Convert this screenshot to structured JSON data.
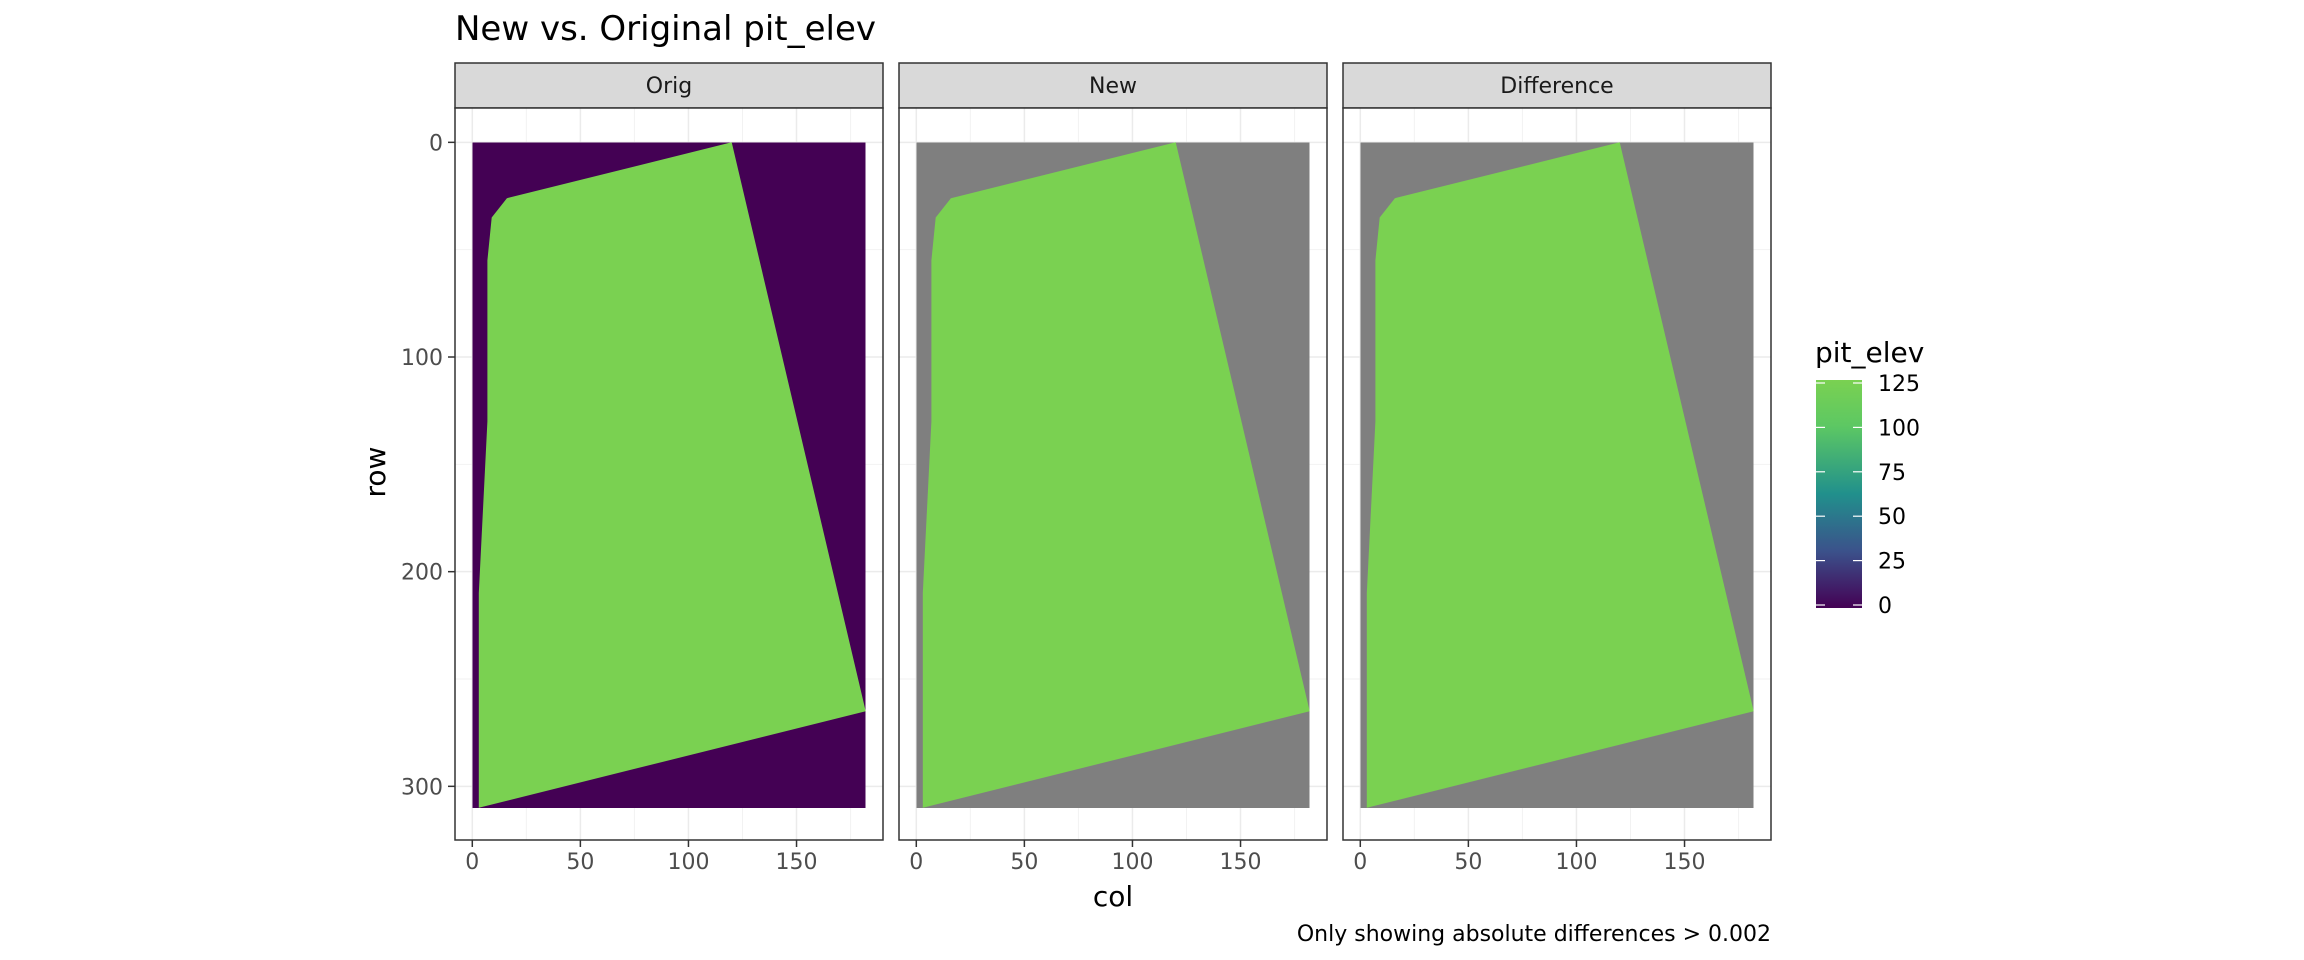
{
  "chart_data": {
    "type": "heatmap",
    "title": "New vs. Original pit_elev",
    "caption": "Only showing absolute differences > 0.002",
    "xlabel": "col",
    "ylabel": "row",
    "xlim": [
      -8,
      190
    ],
    "ylim": [
      325,
      -16
    ],
    "x_ticks": [
      0,
      50,
      100,
      150
    ],
    "x_tick_labels": [
      "0",
      "50",
      "100",
      "150"
    ],
    "y_ticks": [
      0,
      100,
      200,
      300
    ],
    "y_tick_labels": [
      "0",
      "100",
      "200",
      "300"
    ],
    "grid": true,
    "panels": [
      {
        "label": "Orig",
        "fill_value": 0
      },
      {
        "label": "New",
        "fill_value": null
      },
      {
        "label": "Difference",
        "fill_value": null
      }
    ],
    "raster_extent": {
      "col": [
        0,
        182
      ],
      "row": [
        0,
        310
      ]
    },
    "region_value": 125,
    "region_outline": [
      [
        120,
        0
      ],
      [
        182,
        265
      ],
      [
        3,
        310
      ],
      [
        3,
        210
      ],
      [
        7,
        130
      ],
      [
        7,
        55
      ],
      [
        9,
        35
      ],
      [
        16,
        26
      ]
    ],
    "na_color": "#7f7f7f",
    "region_color": "#7ad151",
    "legend": {
      "title": "pit_elev",
      "position": "right",
      "ticks": [
        125,
        100,
        75,
        50,
        25,
        0
      ],
      "tick_labels": [
        "125",
        "100",
        "75",
        "50",
        "25",
        "0"
      ],
      "range": [
        0,
        125
      ],
      "colors": [
        "#440154",
        "#3b528b",
        "#21908c",
        "#5dc863",
        "#7ad151"
      ]
    }
  }
}
